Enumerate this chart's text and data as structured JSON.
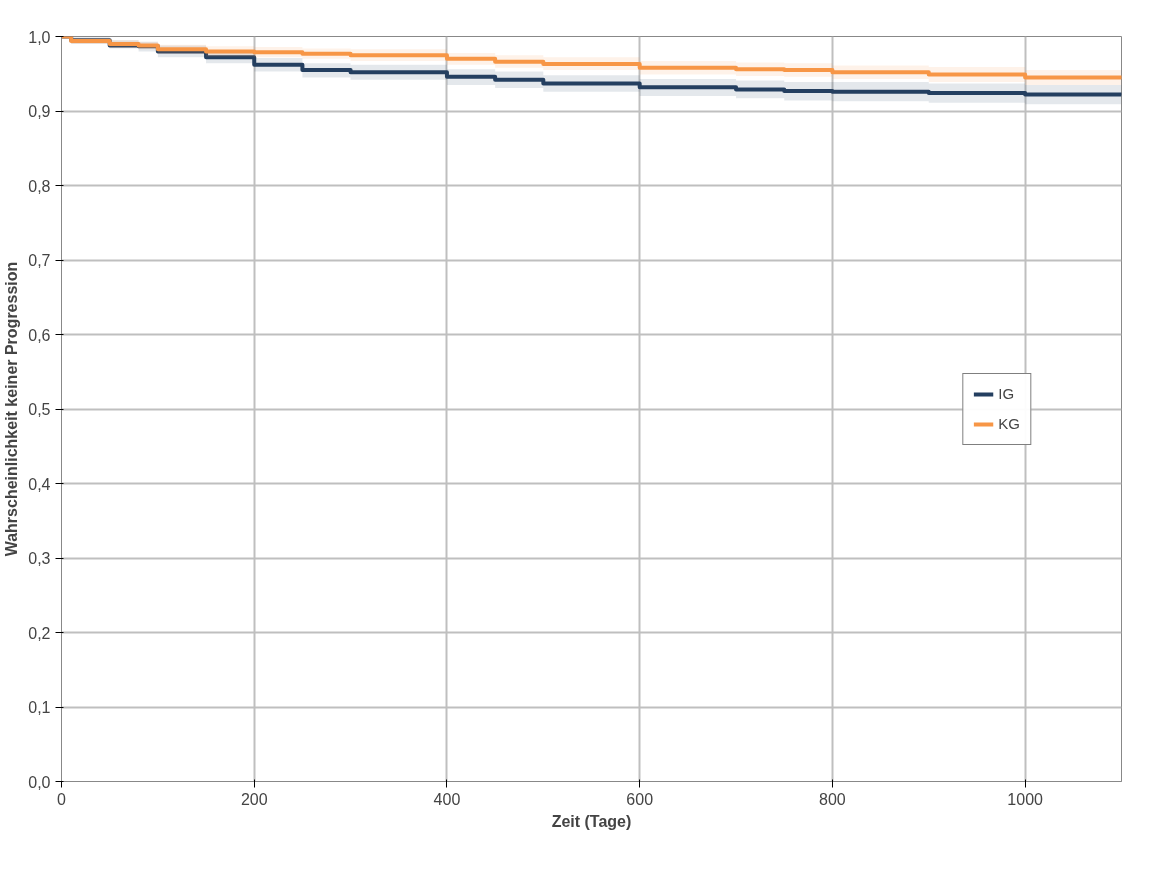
{
  "chart_data": {
    "type": "step",
    "xlabel": "Zeit (Tage)",
    "ylabel": "Wahrscheinlichkeit keiner Progression",
    "xlim": [
      0,
      1100
    ],
    "xticks": [
      0,
      200,
      400,
      600,
      800,
      1000
    ],
    "ylim": [
      0,
      1
    ],
    "yticks": [
      {
        "value": 0,
        "label": "0,0"
      },
      {
        "value": 0.1,
        "label": "0,1"
      },
      {
        "value": 0.2,
        "label": "0,2"
      },
      {
        "value": 0.3,
        "label": "0,3"
      },
      {
        "value": 0.4,
        "label": "0,4"
      },
      {
        "value": 0.5,
        "label": "0,5"
      },
      {
        "value": 0.6,
        "label": "0,6"
      },
      {
        "value": 0.7,
        "label": "0,7"
      },
      {
        "value": 0.8,
        "label": "0,8"
      },
      {
        "value": 0.9,
        "label": "0,9"
      },
      {
        "value": 1,
        "label": "1,0"
      }
    ],
    "grid": true,
    "legend": "right",
    "x": [
      0,
      10,
      50,
      80,
      100,
      150,
      200,
      250,
      300,
      400,
      450,
      500,
      600,
      700,
      750,
      800,
      900,
      1000,
      1100
    ],
    "series": [
      {
        "name": "IG",
        "color": "#243f60",
        "values": [
          1.0,
          0.995,
          0.988,
          0.987,
          0.98,
          0.972,
          0.962,
          0.955,
          0.952,
          0.946,
          0.942,
          0.937,
          0.932,
          0.929,
          0.927,
          0.926,
          0.924,
          0.922,
          0.921
        ],
        "lower": [
          1.0,
          0.99,
          0.984,
          0.98,
          0.972,
          0.964,
          0.953,
          0.945,
          0.942,
          0.935,
          0.931,
          0.926,
          0.92,
          0.917,
          0.914,
          0.913,
          0.911,
          0.909,
          0.908
        ],
        "upper": [
          1.0,
          0.999,
          0.995,
          0.993,
          0.988,
          0.98,
          0.971,
          0.964,
          0.962,
          0.956,
          0.953,
          0.948,
          0.943,
          0.941,
          0.939,
          0.939,
          0.937,
          0.935,
          0.934
        ]
      },
      {
        "name": "KG",
        "color": "#f79646",
        "values": [
          1.0,
          0.994,
          0.99,
          0.988,
          0.983,
          0.98,
          0.979,
          0.977,
          0.975,
          0.97,
          0.966,
          0.963,
          0.958,
          0.956,
          0.955,
          0.952,
          0.949,
          0.945,
          0.943
        ],
        "lower": [
          1.0,
          0.99,
          0.985,
          0.983,
          0.977,
          0.973,
          0.972,
          0.97,
          0.967,
          0.962,
          0.958,
          0.955,
          0.949,
          0.947,
          0.946,
          0.943,
          0.939,
          0.935,
          0.933
        ],
        "upper": [
          1.0,
          0.998,
          0.995,
          0.993,
          0.989,
          0.987,
          0.986,
          0.984,
          0.983,
          0.978,
          0.975,
          0.972,
          0.967,
          0.965,
          0.964,
          0.961,
          0.959,
          0.955,
          0.953
        ]
      }
    ]
  }
}
